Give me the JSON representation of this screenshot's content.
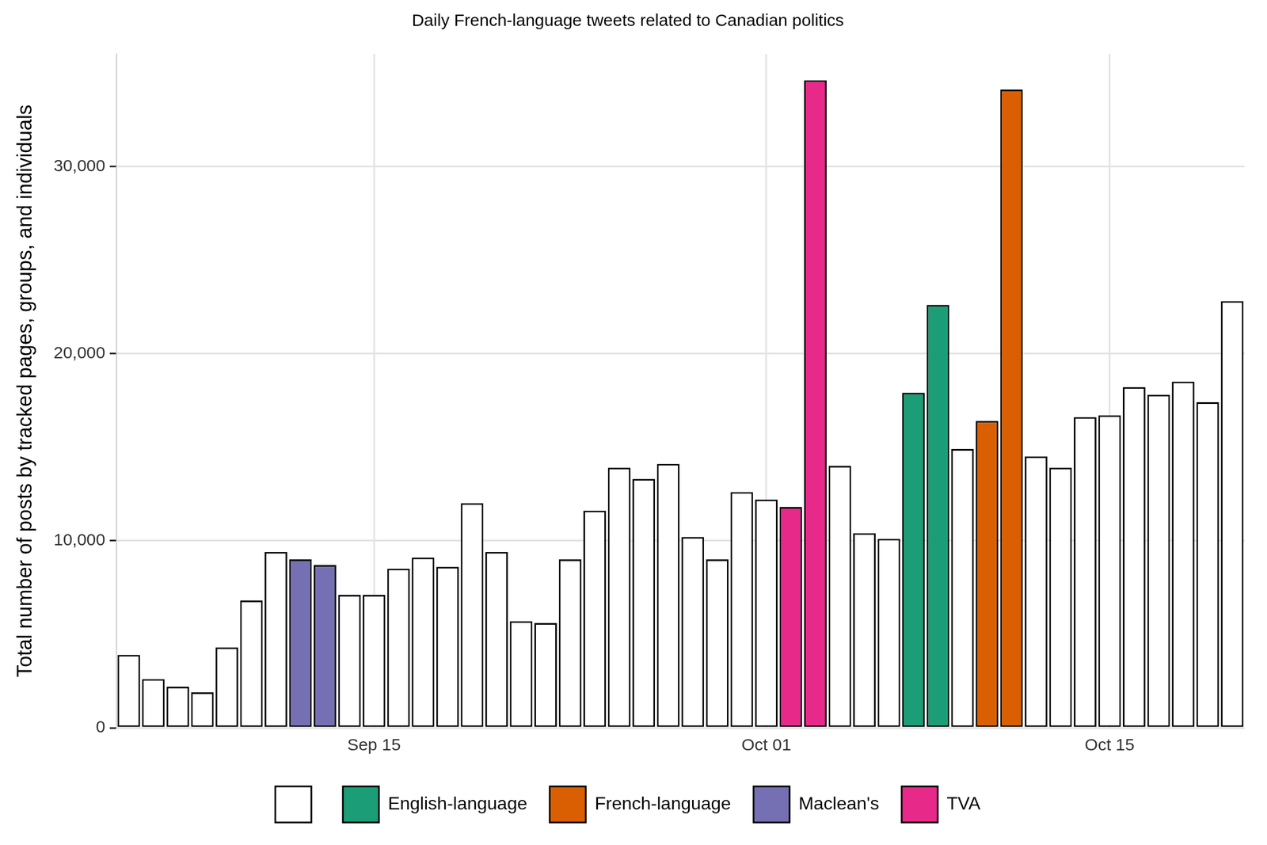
{
  "chart_data": {
    "type": "bar",
    "title": "Daily French-language tweets related to Canadian politics",
    "y_label": "Total number of posts by tracked pages, groups, and individuals",
    "categories": [
      null,
      null,
      null,
      null,
      null,
      null,
      null,
      null,
      null,
      null,
      "Sep 15",
      null,
      null,
      null,
      null,
      null,
      null,
      null,
      null,
      null,
      null,
      null,
      null,
      null,
      null,
      null,
      "Oct 01",
      null,
      null,
      null,
      null,
      null,
      null,
      null,
      null,
      null,
      null,
      null,
      null,
      null,
      "Oct 15",
      null,
      null,
      null,
      null,
      null
    ],
    "series": [
      {
        "color": "#ffffff",
        "values": [
          3900,
          2600,
          2200,
          1900,
          4300,
          6800,
          9400,
          null,
          null,
          7100,
          7100,
          8500,
          9100,
          8600,
          12000,
          9400,
          5700,
          5600,
          9000,
          11600,
          13900,
          13300,
          14100,
          10200,
          9000,
          12600,
          12200,
          null,
          null,
          14000,
          10400,
          10100,
          null,
          null,
          14900,
          null,
          null,
          14500,
          13900,
          16600,
          16700,
          18200,
          17800,
          18500,
          17400,
          22800
        ]
      },
      {
        "name": "English-language",
        "color": "#1b9e77",
        "values": [
          null,
          null,
          null,
          null,
          null,
          null,
          null,
          null,
          null,
          null,
          null,
          null,
          null,
          null,
          null,
          null,
          null,
          null,
          null,
          null,
          null,
          null,
          null,
          null,
          null,
          null,
          null,
          null,
          null,
          null,
          null,
          null,
          17900,
          22600,
          null,
          null,
          null,
          null,
          null,
          null,
          null,
          null,
          null,
          null,
          null,
          null
        ]
      },
      {
        "name": "French-language",
        "color": "#d95f02",
        "values": [
          null,
          null,
          null,
          null,
          null,
          null,
          null,
          null,
          null,
          null,
          null,
          null,
          null,
          null,
          null,
          null,
          null,
          null,
          null,
          null,
          null,
          null,
          null,
          null,
          null,
          null,
          null,
          null,
          null,
          null,
          null,
          null,
          null,
          null,
          null,
          16400,
          34100,
          null,
          null,
          null,
          null,
          null,
          null,
          null,
          null,
          null
        ]
      },
      {
        "name": "Maclean's",
        "color": "#7570b3",
        "values": [
          null,
          null,
          null,
          null,
          null,
          null,
          null,
          9000,
          8700,
          null,
          null,
          null,
          null,
          null,
          null,
          null,
          null,
          null,
          null,
          null,
          null,
          null,
          null,
          null,
          null,
          null,
          null,
          null,
          null,
          null,
          null,
          null,
          null,
          null,
          null,
          null,
          null,
          null,
          null,
          null,
          null,
          null,
          null,
          null,
          null,
          null
        ]
      },
      {
        "name": "TVA",
        "color": "#e7298a",
        "values": [
          null,
          null,
          null,
          null,
          null,
          null,
          null,
          null,
          null,
          null,
          null,
          null,
          null,
          null,
          null,
          null,
          null,
          null,
          null,
          null,
          null,
          null,
          null,
          null,
          null,
          null,
          null,
          11800,
          34600,
          null,
          null,
          null,
          null,
          null,
          null,
          null,
          null,
          null,
          null,
          null,
          null,
          null,
          null,
          null,
          null,
          null
        ]
      }
    ],
    "ylim": [
      0,
      36000
    ],
    "yticks": [
      0,
      {
        "value": 10000,
        "label": "10,000"
      },
      {
        "value": 20000,
        "label": "20,000"
      },
      {
        "value": 30000,
        "label": "30,000"
      }
    ],
    "grid": true,
    "legend": "bottom"
  }
}
